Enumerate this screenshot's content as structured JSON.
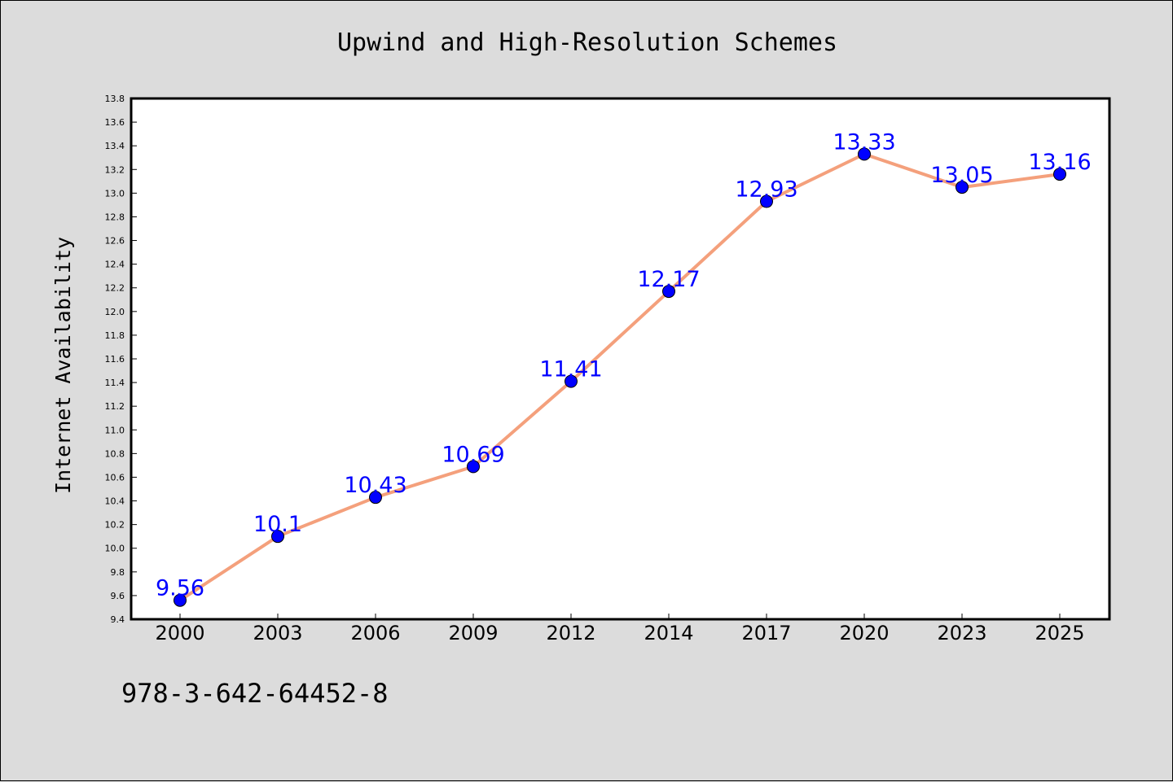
{
  "chart_data": {
    "type": "line",
    "title": "Upwind and High-Resolution Schemes",
    "xlabel": "",
    "ylabel": "Internet Availability",
    "categories": [
      "2000",
      "2003",
      "2006",
      "2009",
      "2012",
      "2014",
      "2017",
      "2020",
      "2023",
      "2025"
    ],
    "series": [
      {
        "values": [
          9.56,
          10.1,
          10.43,
          10.69,
          11.41,
          12.17,
          12.93,
          13.33,
          13.05,
          13.16
        ],
        "line_color": "#f4a07c",
        "marker_color": "#0000ff"
      }
    ],
    "data_labels": [
      "9.56",
      "10.1",
      "10.43",
      "10.69",
      "11.41",
      "12.17",
      "12.93",
      "13.33",
      "13.05",
      "13.16"
    ],
    "data_label_color": "#0000ff",
    "ylim": [
      9.4,
      13.8
    ],
    "ytick_step": 0.2,
    "grid": false,
    "legend": "none"
  },
  "footer": {
    "isbn": "978-3-642-64452-8"
  }
}
